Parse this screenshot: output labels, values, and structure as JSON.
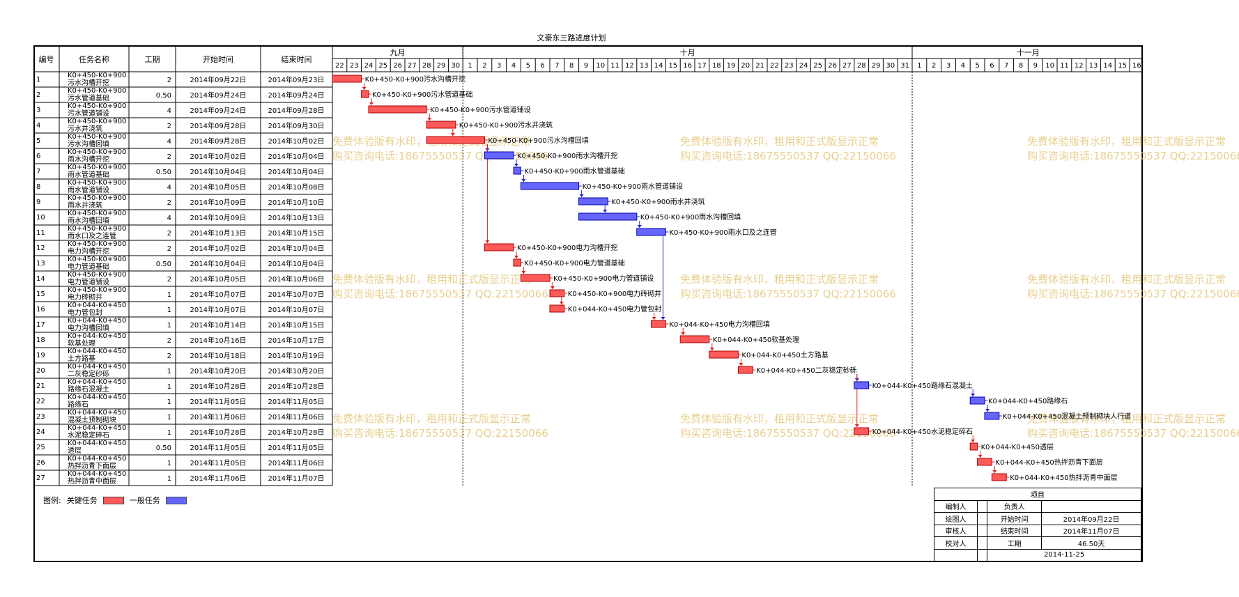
{
  "title": "文豪东三路进度计划",
  "headers": {
    "id": "编号",
    "name": "任务名称",
    "duration": "工期",
    "start": "开始时间",
    "end": "结束时间"
  },
  "months": [
    {
      "label": "九月",
      "days": [
        "22",
        "23",
        "24",
        "25",
        "26",
        "27",
        "28",
        "29",
        "30"
      ]
    },
    {
      "label": "十月",
      "days": [
        "1",
        "2",
        "3",
        "4",
        "5",
        "6",
        "7",
        "8",
        "9",
        "10",
        "11",
        "12",
        "13",
        "14",
        "15",
        "16",
        "17",
        "18",
        "19",
        "20",
        "21",
        "22",
        "23",
        "24",
        "25",
        "26",
        "27",
        "28",
        "29",
        "30",
        "31"
      ]
    },
    {
      "label": "十一月",
      "days": [
        "1",
        "2",
        "3",
        "4",
        "5",
        "6",
        "7",
        "8",
        "9",
        "10",
        "11",
        "12",
        "13",
        "14",
        "15",
        "16"
      ]
    }
  ],
  "tasks": [
    {
      "id": "1",
      "name": [
        "K0+450-K0+900",
        "污水沟槽开挖"
      ],
      "duration": "2",
      "start": "2014年09月22日",
      "end": "2014年09月23日",
      "bar_label": "K0+450-K0+900污水沟槽开挖",
      "critical": true,
      "s": 0,
      "e": 2
    },
    {
      "id": "2",
      "name": [
        "K0+450-K0+900",
        "污水管道基础"
      ],
      "duration": "0.50",
      "start": "2014年09月24日",
      "end": "2014年09月24日",
      "bar_label": "K0+450-K0+900污水管道基础",
      "critical": true,
      "s": 2,
      "e": 2.5
    },
    {
      "id": "3",
      "name": [
        "K0+450-K0+900",
        "污水管道铺设"
      ],
      "duration": "4",
      "start": "2014年09月24日",
      "end": "2014年09月28日",
      "bar_label": "K0+450-K0+900污水管道铺设",
      "critical": true,
      "s": 2.5,
      "e": 6.5
    },
    {
      "id": "4",
      "name": [
        "K0+450-K0+900",
        "污水井浇筑"
      ],
      "duration": "2",
      "start": "2014年09月28日",
      "end": "2014年09月30日",
      "bar_label": "K0+450-K0+900污水井浇筑",
      "critical": true,
      "s": 6.5,
      "e": 8.5
    },
    {
      "id": "5",
      "name": [
        "K0+450-K0+900",
        "污水沟槽回填"
      ],
      "duration": "4",
      "start": "2014年09月28日",
      "end": "2014年10月02日",
      "bar_label": "K0+450-K0+900污水沟槽回填",
      "critical": true,
      "s": 6.5,
      "e": 10.5
    },
    {
      "id": "6",
      "name": [
        "K0+450-K0+900",
        "雨水沟槽开挖"
      ],
      "duration": "2",
      "start": "2014年10月02日",
      "end": "2014年10月04日",
      "bar_label": "K0+450-K0+900雨水沟槽开挖",
      "critical": false,
      "s": 10.5,
      "e": 12.5
    },
    {
      "id": "7",
      "name": [
        "K0+450-K0+900",
        "雨水管道基础"
      ],
      "duration": "0.50",
      "start": "2014年10月04日",
      "end": "2014年10月04日",
      "bar_label": "K0+450-K0+900雨水管道基础",
      "critical": false,
      "s": 12.5,
      "e": 13
    },
    {
      "id": "8",
      "name": [
        "K0+450-K0+900",
        "雨水管道铺设"
      ],
      "duration": "4",
      "start": "2014年10月05日",
      "end": "2014年10月08日",
      "bar_label": "K0+450-K0+900雨水管道铺设",
      "critical": false,
      "s": 13,
      "e": 17
    },
    {
      "id": "9",
      "name": [
        "K0+450-K0+900",
        "雨水井浇筑"
      ],
      "duration": "2",
      "start": "2014年10月09日",
      "end": "2014年10月10日",
      "bar_label": "K0+450-K0+900雨水井浇筑",
      "critical": false,
      "s": 17,
      "e": 19
    },
    {
      "id": "10",
      "name": [
        "K0+450-K0+900",
        "雨水沟槽回填"
      ],
      "duration": "4",
      "start": "2014年10月09日",
      "end": "2014年10月13日",
      "bar_label": "K0+450-K0+900雨水沟槽回填",
      "critical": false,
      "s": 17,
      "e": 21
    },
    {
      "id": "11",
      "name": [
        "K0+450-K0+900",
        "雨水口及之连管"
      ],
      "duration": "2",
      "start": "2014年10月13日",
      "end": "2014年10月15日",
      "bar_label": "K0+450-K0+900雨水口及之连管",
      "critical": false,
      "s": 21,
      "e": 23
    },
    {
      "id": "12",
      "name": [
        "K0+450-K0+900",
        "电力沟槽开挖"
      ],
      "duration": "2",
      "start": "2014年10月02日",
      "end": "2014年10月04日",
      "bar_label": "K0+450-K0+900电力沟槽开挖",
      "critical": true,
      "s": 10.5,
      "e": 12.5
    },
    {
      "id": "13",
      "name": [
        "K0+450-K0+900",
        "电力管道基础"
      ],
      "duration": "0.50",
      "start": "2014年10月04日",
      "end": "2014年10月04日",
      "bar_label": "K0+450-K0+900电力管道基础",
      "critical": true,
      "s": 12.5,
      "e": 13
    },
    {
      "id": "14",
      "name": [
        "K0+450-K0+900",
        "电力管道铺设"
      ],
      "duration": "2",
      "start": "2014年10月05日",
      "end": "2014年10月06日",
      "bar_label": "K0+450-K0+900电力管道铺设",
      "critical": true,
      "s": 13,
      "e": 15
    },
    {
      "id": "15",
      "name": [
        "K0+450-K0+900",
        "电力砖砌井"
      ],
      "duration": "1",
      "start": "2014年10月07日",
      "end": "2014年10月07日",
      "bar_label": "K0+450-K0+900电力砖砌井",
      "critical": true,
      "s": 15,
      "e": 16
    },
    {
      "id": "16",
      "name": [
        "K0+044-K0+450",
        "电力管包封"
      ],
      "duration": "1",
      "start": "2014年10月07日",
      "end": "2014年10月07日",
      "bar_label": "K0+044-K0+450电力管包封",
      "critical": true,
      "s": 15,
      "e": 16
    },
    {
      "id": "17",
      "name": [
        "K0+044-K0+450",
        "电力沟槽回填"
      ],
      "duration": "1",
      "start": "2014年10月14日",
      "end": "2014年10月15日",
      "bar_label": "K0+044-K0+450电力沟槽回填",
      "critical": true,
      "s": 22,
      "e": 23
    },
    {
      "id": "18",
      "name": [
        "K0+044-K0+450",
        "软基处理"
      ],
      "duration": "2",
      "start": "2014年10月16日",
      "end": "2014年10月17日",
      "bar_label": "K0+044-K0+450软基处理",
      "critical": true,
      "s": 24,
      "e": 26
    },
    {
      "id": "19",
      "name": [
        "K0+044-K0+450",
        "土方路基"
      ],
      "duration": "2",
      "start": "2014年10月18日",
      "end": "2014年10月19日",
      "bar_label": "K0+044-K0+450土方路基",
      "critical": true,
      "s": 26,
      "e": 28
    },
    {
      "id": "20",
      "name": [
        "K0+044-K0+450",
        "二灰稳定砂砾"
      ],
      "duration": "1",
      "start": "2014年10月20日",
      "end": "2014年10月20日",
      "bar_label": "K0+044-K0+450二灰稳定砂砾",
      "critical": true,
      "s": 28,
      "e": 29
    },
    {
      "id": "21",
      "name": [
        "K0+044-K0+450",
        "路缘石混凝土"
      ],
      "duration": "1",
      "start": "2014年10月28日",
      "end": "2014年10月28日",
      "bar_label": "K0+044-K0+450路缘石混凝土",
      "critical": false,
      "s": 36,
      "e": 37
    },
    {
      "id": "22",
      "name": [
        "K0+044-K0+450",
        "路缘石"
      ],
      "duration": "1",
      "start": "2014年11月05日",
      "end": "2014年11月05日",
      "bar_label": "K0+044-K0+450路缘石",
      "critical": false,
      "s": 44,
      "e": 45
    },
    {
      "id": "23",
      "name": [
        "K0+044-K0+450",
        "混凝土预制砌块"
      ],
      "duration": "1",
      "start": "2014年11月06日",
      "end": "2014年11月06日",
      "bar_label": "K0+044-K0+450混凝土预制砌块人行道",
      "critical": false,
      "s": 45,
      "e": 46
    },
    {
      "id": "24",
      "name": [
        "K0+044-K0+450",
        "水泥稳定碎石"
      ],
      "duration": "1",
      "start": "2014年10月28日",
      "end": "2014年10月28日",
      "bar_label": "K0+044-K0+450水泥稳定碎石",
      "critical": true,
      "s": 36,
      "e": 37
    },
    {
      "id": "25",
      "name": [
        "K0+044-K0+450",
        "透层"
      ],
      "duration": "0.50",
      "start": "2014年11月05日",
      "end": "2014年11月05日",
      "bar_label": "K0+044-K0+450透层",
      "critical": true,
      "s": 44,
      "e": 44.5
    },
    {
      "id": "26",
      "name": [
        "K0+044-K0+450",
        "热拌沥青下面层"
      ],
      "duration": "1",
      "start": "2014年11月05日",
      "end": "2014年11月06日",
      "bar_label": "K0+044-K0+450热拌沥青下面层",
      "critical": true,
      "s": 44.5,
      "e": 45.5
    },
    {
      "id": "27",
      "name": [
        "K0+044-K0+450",
        "热拌沥青中面层"
      ],
      "duration": "1",
      "start": "2014年11月06日",
      "end": "2014年11月07日",
      "bar_label": "K0+044-K0+450热拌沥青中面层",
      "critical": true,
      "s": 45.5,
      "e": 46.5
    }
  ],
  "watermark": {
    "line1": "免费体验版有水印，租用和正式版显示正常",
    "line2": "购买咨询电话:18675550537 QQ:22150066"
  },
  "legend": {
    "prefix": "图例:",
    "critical_label": "关键任务",
    "normal_label": "一般任务"
  },
  "info": {
    "project_header": "项目",
    "editor": "编制人",
    "owner": "负责人",
    "drafter": "绘图人",
    "start_label": "开始时间",
    "start_value": "2014年09月22日",
    "reviewer": "审核人",
    "end_label": "结束时间",
    "end_value": "2014年11月07日",
    "checker": "校对人",
    "duration_label": "工期",
    "duration_value": "46.50天",
    "date": "2014-11-25"
  },
  "colors": {
    "critical": "#ff5a5a",
    "normal": "#6666ff",
    "critical_line": "#e02020",
    "normal_line": "#2020d0"
  },
  "chart_data": {
    "type": "gantt",
    "title": "文豪东三路进度计划",
    "timeline_start": "2014-09-22",
    "timeline_end": "2014-11-16",
    "legend": [
      "关键任务",
      "一般任务"
    ]
  }
}
